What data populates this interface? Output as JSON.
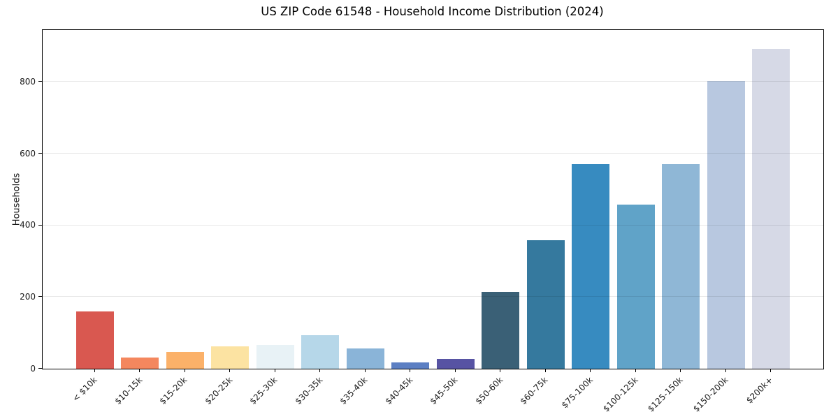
{
  "title": "US ZIP Code 61548 - Household Income Distribution (2024)",
  "chart_data": {
    "type": "bar",
    "title": "US ZIP Code 61548 - Household Income Distribution (2024)",
    "xlabel": "",
    "ylabel": "Households",
    "categories": [
      "< $10k",
      "$10-15k",
      "$15-20k",
      "$20-25k",
      "$25-30k",
      "$30-35k",
      "$35-40k",
      "$40-45k",
      "$45-50k",
      "$50-60k",
      "$60-75k",
      "$75-100k",
      "$100-125k",
      "$125-150k",
      "$150-200k",
      "$200k+"
    ],
    "values": [
      160,
      31,
      46,
      63,
      67,
      94,
      57,
      18,
      27,
      215,
      358,
      570,
      457,
      570,
      802,
      893
    ],
    "bar_colors": [
      "#d95850",
      "#f4875e",
      "#fbb169",
      "#fce3a2",
      "#e8f2f6",
      "#b6d7e9",
      "#8ab4d8",
      "#5c7fc3",
      "#5753a3",
      "#3a6076",
      "#35799e",
      "#378bc0",
      "#60a3c8",
      "#8fb7d6",
      "#b8c8e0",
      "#d6d9e6"
    ],
    "ylim": [
      0,
      945
    ],
    "yticks": [
      0,
      200,
      400,
      600,
      800
    ],
    "grid": "horizontal-major",
    "legend": "none",
    "x_tick_rotation_deg": 45
  },
  "style_colors": {
    "background": "#ffffff",
    "spine": "#000000",
    "gridline": "#e8e8e8",
    "text": "#1a1a1a"
  }
}
